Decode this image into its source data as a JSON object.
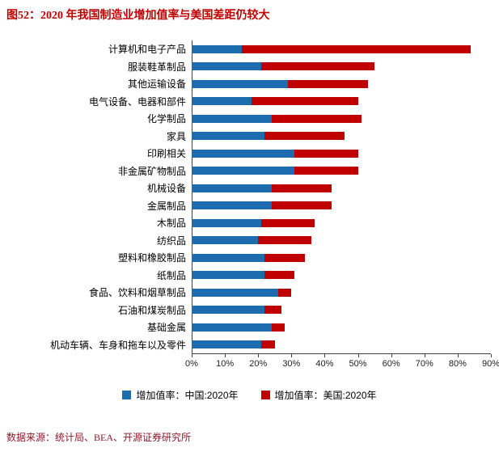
{
  "title": "图52：2020 年我国制造业增加值率与美国差距仍较大",
  "source": "数据来源：统计局、BEA、开源证券研究所",
  "colors": {
    "china": "#1e6cb0",
    "us": "#c00000",
    "title": "#c00000",
    "source": "#8b1a2a",
    "axis": "#404040"
  },
  "legend": [
    {
      "label": "增加值率：中国:2020年",
      "color": "#1e6cb0"
    },
    {
      "label": "增加值率：美国:2020年",
      "color": "#c00000"
    }
  ],
  "chart_data": {
    "type": "bar",
    "orientation": "horizontal",
    "overlay": "red segment drawn from China value to US value",
    "title": "图52：2020 年我国制造业增加值率与美国差距仍较大",
    "categories": [
      "计算机和电子产品",
      "服装鞋革制品",
      "其他运输设备",
      "电气设备、电器和部件",
      "化学制品",
      "家具",
      "印刷相关",
      "非金属矿物制品",
      "机械设备",
      "金属制品",
      "木制品",
      "纺织品",
      "塑料和橡胶制品",
      "纸制品",
      "食品、饮料和烟草制品",
      "石油和煤炭制品",
      "基础金属",
      "机动车辆、车身和拖车以及零件"
    ],
    "series": [
      {
        "name": "增加值率：中国:2020年",
        "values": [
          15,
          21,
          29,
          18,
          24,
          22,
          31,
          31,
          24,
          24,
          21,
          20,
          22,
          22,
          26,
          22,
          24,
          21
        ]
      },
      {
        "name": "增加值率：美国:2020年",
        "values": [
          84,
          55,
          53,
          50,
          51,
          46,
          50,
          50,
          42,
          42,
          37,
          36,
          34,
          31,
          30,
          27,
          28,
          25
        ]
      }
    ],
    "x_ticks": [
      "0%",
      "10%",
      "20%",
      "30%",
      "40%",
      "50%",
      "60%",
      "70%",
      "80%",
      "90%"
    ],
    "xlim": [
      0,
      90
    ],
    "grid": false,
    "legend_position": "bottom"
  }
}
